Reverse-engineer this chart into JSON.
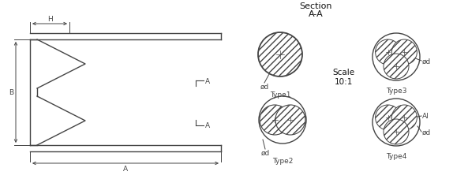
{
  "bg_color": "#ffffff",
  "line_color": "#444444",
  "section_title": "Section",
  "section_subtitle": "A-A",
  "scale_text": "Scale\n10:1",
  "labels": {
    "H": "H",
    "B": "B",
    "A_top": "A",
    "A_bottom": "A",
    "A_dim": "A",
    "phi_d1": "ød",
    "phi_d2": "ød",
    "phi_d3": "ød",
    "phi_d4": "ød",
    "type1": "Type1",
    "type2": "Type2",
    "type3": "Type3",
    "type4": "Type4",
    "Al": "Al"
  },
  "font_size_small": 6.5,
  "font_size_title": 8,
  "font_size_scale": 7.5
}
